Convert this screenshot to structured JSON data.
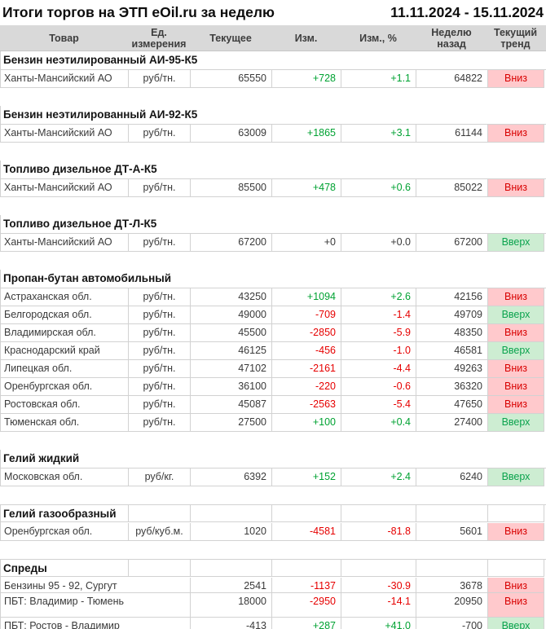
{
  "page": {
    "title": "Итоги торгов на ЭТП eOil.ru за неделю",
    "date_range": "11.11.2024 - 15.11.2024"
  },
  "columns": [
    "Товар",
    "Ед. измерения",
    "Текущее",
    "Изм.",
    "Изм., %",
    "Неделю назад",
    "Текущий тренд"
  ],
  "colors": {
    "grid": "#d2d2d2",
    "header_bg": "#d9d9d9",
    "positive": "#00a232",
    "negative": "#e60000",
    "trend_down_bg": "#ffc9cc",
    "trend_down_text": "#d80000",
    "trend_up_bg": "#cdedd2",
    "trend_up_text": "#0aa34d"
  },
  "sections": [
    {
      "title": "Бензин неэтилированный АИ-95-К5",
      "bordered": false,
      "rows": [
        {
          "product": "Ханты-Мансийский АО",
          "unit": "руб/тн.",
          "current": "65550",
          "change": "+728",
          "change_pct": "+1.1",
          "dir": "positive",
          "week_ago": "64822",
          "trend": "Вниз",
          "trend_dir": "down"
        }
      ]
    },
    {
      "title": "Бензин неэтилированный АИ-92-К5",
      "bordered": false,
      "rows": [
        {
          "product": "Ханты-Мансийский АО",
          "unit": "руб/тн.",
          "current": "63009",
          "change": "+1865",
          "change_pct": "+3.1",
          "dir": "positive",
          "week_ago": "61144",
          "trend": "Вниз",
          "trend_dir": "down"
        }
      ]
    },
    {
      "title": "Топливо дизельное ДТ-А-К5",
      "bordered": false,
      "rows": [
        {
          "product": "Ханты-Мансийский АО",
          "unit": "руб/тн.",
          "current": "85500",
          "change": "+478",
          "change_pct": "+0.6",
          "dir": "positive",
          "week_ago": "85022",
          "trend": "Вниз",
          "trend_dir": "down"
        }
      ]
    },
    {
      "title": "Топливо дизельное ДТ-Л-К5",
      "bordered": false,
      "rows": [
        {
          "product": "Ханты-Мансийский АО",
          "unit": "руб/тн.",
          "current": "67200",
          "change": "+0",
          "change_pct": "+0.0",
          "dir": "neutral",
          "week_ago": "67200",
          "trend": "Вверх",
          "trend_dir": "up"
        }
      ]
    },
    {
      "title": "Пропан-бутан автомобильный",
      "bordered": false,
      "rows": [
        {
          "product": "Астраханская обл.",
          "unit": "руб/тн.",
          "current": "43250",
          "change": "+1094",
          "change_pct": "+2.6",
          "dir": "positive",
          "week_ago": "42156",
          "trend": "Вниз",
          "trend_dir": "down"
        },
        {
          "product": "Белгородская обл.",
          "unit": "руб/тн.",
          "current": "49000",
          "change": "-709",
          "change_pct": "-1.4",
          "dir": "negative",
          "week_ago": "49709",
          "trend": "Вверх",
          "trend_dir": "up"
        },
        {
          "product": "Владимирская обл.",
          "unit": "руб/тн.",
          "current": "45500",
          "change": "-2850",
          "change_pct": "-5.9",
          "dir": "negative",
          "week_ago": "48350",
          "trend": "Вниз",
          "trend_dir": "down"
        },
        {
          "product": "Краснодарский край",
          "unit": "руб/тн.",
          "current": "46125",
          "change": "-456",
          "change_pct": "-1.0",
          "dir": "negative",
          "week_ago": "46581",
          "trend": "Вверх",
          "trend_dir": "up"
        },
        {
          "product": "Липецкая обл.",
          "unit": "руб/тн.",
          "current": "47102",
          "change": "-2161",
          "change_pct": "-4.4",
          "dir": "negative",
          "week_ago": "49263",
          "trend": "Вниз",
          "trend_dir": "down"
        },
        {
          "product": "Оренбургская обл.",
          "unit": "руб/тн.",
          "current": "36100",
          "change": "-220",
          "change_pct": "-0.6",
          "dir": "negative",
          "week_ago": "36320",
          "trend": "Вниз",
          "trend_dir": "down"
        },
        {
          "product": "Ростовская обл.",
          "unit": "руб/тн.",
          "current": "45087",
          "change": "-2563",
          "change_pct": "-5.4",
          "dir": "negative",
          "week_ago": "47650",
          "trend": "Вниз",
          "trend_dir": "down"
        },
        {
          "product": "Тюменская обл.",
          "unit": "руб/тн.",
          "current": "27500",
          "change": "+100",
          "change_pct": "+0.4",
          "dir": "positive",
          "week_ago": "27400",
          "trend": "Вверх",
          "trend_dir": "up"
        }
      ]
    },
    {
      "title": "Гелий жидкий",
      "bordered": false,
      "rows": [
        {
          "product": "Московская обл.",
          "unit": "руб/кг.",
          "current": "6392",
          "change": "+152",
          "change_pct": "+2.4",
          "dir": "positive",
          "week_ago": "6240",
          "trend": "Вверх",
          "trend_dir": "up"
        }
      ]
    },
    {
      "title": "Гелий газообразный",
      "bordered": true,
      "rows": [
        {
          "product": "Оренбургская обл.",
          "unit": "руб/куб.м.",
          "current": "1020",
          "change": "-4581",
          "change_pct": "-81.8",
          "dir": "negative",
          "week_ago": "5601",
          "trend": "Вниз",
          "trend_dir": "down"
        }
      ]
    },
    {
      "title": "Спреды",
      "bordered": true,
      "rows": [
        {
          "product": "Бензины 95 - 92, Сургут",
          "unit": null,
          "current": "2541",
          "change": "-1137",
          "change_pct": "-30.9",
          "dir": "negative",
          "week_ago": "3678",
          "trend": "Вниз",
          "trend_dir": "down",
          "height": 19
        },
        {
          "product": "ПБТ: Владимир - Тюмень",
          "unit": null,
          "current": "18000",
          "change": "-2950",
          "change_pct": "-14.1",
          "dir": "negative",
          "week_ago": "20950",
          "trend": "Вниз",
          "trend_dir": "down",
          "height": 30
        },
        {
          "product": "ПБТ: Ростов - Владимир",
          "unit": null,
          "current": "-413",
          "change": "+287",
          "change_pct": "+41.0",
          "dir": "positive",
          "week_ago": "-700",
          "trend": "Вверх",
          "trend_dir": "up",
          "height": 21
        }
      ]
    }
  ]
}
